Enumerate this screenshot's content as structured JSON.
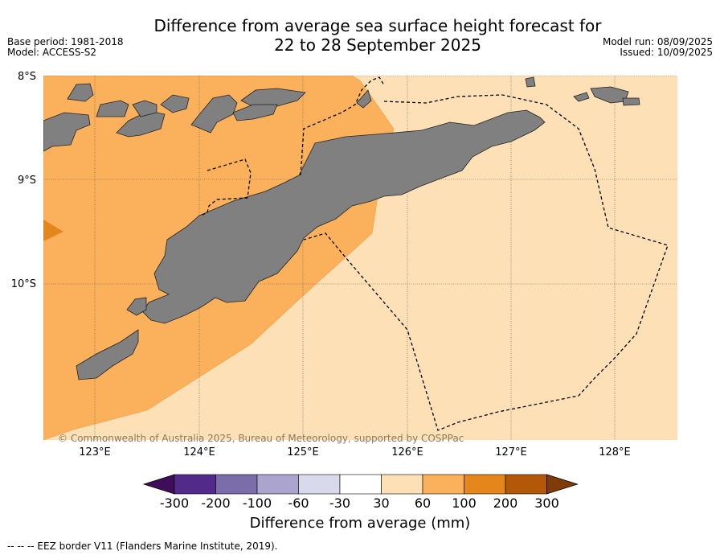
{
  "header": {
    "title": "Difference from average sea surface height forecast for\n22 to 28 September 2025",
    "base_period": "Base period: 1981-2018",
    "model": "Model: ACCESS-S2",
    "model_run": "Model run: 08/09/2025",
    "issued": "Issued: 10/09/2025"
  },
  "map": {
    "lat_labels": [
      "8°S",
      "9°S",
      "10°S"
    ],
    "lon_labels": [
      "123°E",
      "124°E",
      "125°E",
      "126°E",
      "127°E",
      "128°E"
    ],
    "copyright": "© Commonwealth of Australia 2025, Bureau of Meteorology, supported by COSPPac",
    "colors": {
      "land": "#808080",
      "band_60_100": "#fbb15c",
      "band_30_60": "#fde0b5",
      "band_100_200": "#e4861b"
    }
  },
  "colorbar": {
    "label": "Difference from average (mm)",
    "ticks": [
      "-300",
      "-200",
      "-100",
      "-60",
      "-30",
      "30",
      "60",
      "100",
      "200",
      "300"
    ],
    "colors": [
      "#3f0e5a",
      "#512a8a",
      "#7b6caa",
      "#aba4ce",
      "#d8d9eb",
      "#ffffff",
      "#fde0b5",
      "#fbb15c",
      "#e4861b",
      "#b35709",
      "#7f3b08"
    ]
  },
  "footer": {
    "eez_note": "--  --  -- EEZ border V11 (Flanders Marine Institute, 2019)."
  }
}
